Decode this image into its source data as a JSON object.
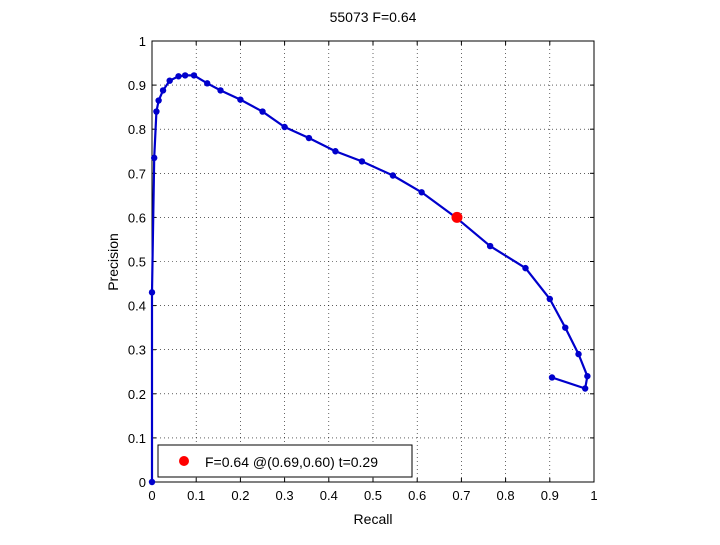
{
  "chart_data": {
    "type": "line",
    "title": "55073 F=0.64",
    "xlabel": "Recall",
    "ylabel": "Precision",
    "xlim": [
      0,
      1
    ],
    "ylim": [
      0,
      1
    ],
    "grid": true,
    "x_ticks": [
      "0",
      "0.1",
      "0.2",
      "0.3",
      "0.4",
      "0.5",
      "0.6",
      "0.7",
      "0.8",
      "0.9",
      "1"
    ],
    "y_ticks": [
      "0",
      "0.1",
      "0.2",
      "0.3",
      "0.4",
      "0.5",
      "0.6",
      "0.7",
      "0.8",
      "0.9",
      "1"
    ],
    "series": [
      {
        "color": "#0000cc",
        "points": [
          [
            0.0,
            0.0
          ],
          [
            0.0,
            0.43
          ],
          [
            0.005,
            0.735
          ],
          [
            0.01,
            0.84
          ],
          [
            0.015,
            0.865
          ],
          [
            0.025,
            0.888
          ],
          [
            0.04,
            0.91
          ],
          [
            0.06,
            0.92
          ],
          [
            0.075,
            0.922
          ],
          [
            0.095,
            0.922
          ],
          [
            0.125,
            0.904
          ],
          [
            0.155,
            0.888
          ],
          [
            0.2,
            0.867
          ],
          [
            0.25,
            0.84
          ],
          [
            0.3,
            0.805
          ],
          [
            0.355,
            0.78
          ],
          [
            0.415,
            0.75
          ],
          [
            0.475,
            0.727
          ],
          [
            0.545,
            0.695
          ],
          [
            0.61,
            0.657
          ],
          [
            0.69,
            0.598
          ],
          [
            0.765,
            0.535
          ],
          [
            0.845,
            0.485
          ],
          [
            0.9,
            0.415
          ],
          [
            0.935,
            0.35
          ],
          [
            0.965,
            0.29
          ],
          [
            0.985,
            0.24
          ],
          [
            0.98,
            0.212
          ],
          [
            0.905,
            0.237
          ]
        ]
      }
    ],
    "highlight": {
      "x": 0.69,
      "y": 0.6,
      "color": "#ff0000"
    },
    "legend": {
      "placement": "bottom-left",
      "label": "F=0.64 @(0.69,0.60) t=0.29"
    }
  }
}
